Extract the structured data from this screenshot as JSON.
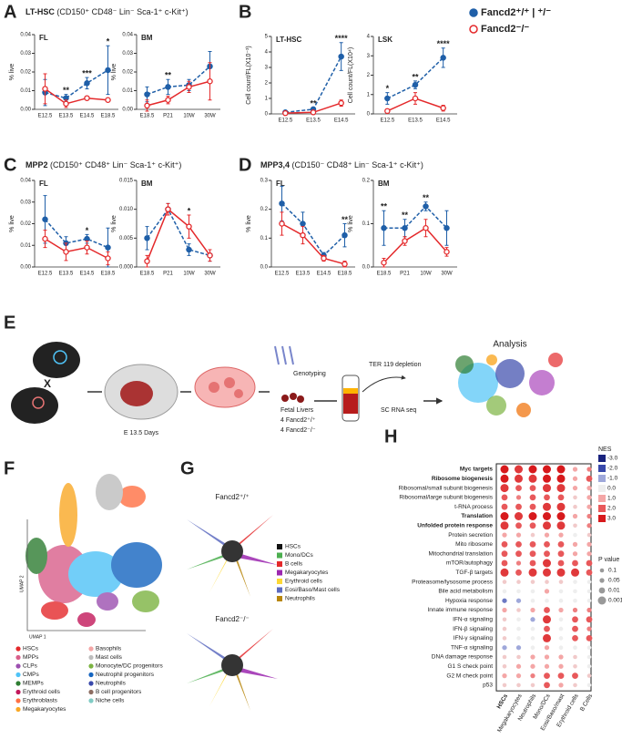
{
  "panel_letters": [
    "A",
    "B",
    "C",
    "D",
    "E",
    "F",
    "G",
    "H"
  ],
  "headers": {
    "A": [
      "LT-HSC",
      " (CD150⁺ CD48⁻ Lin⁻ Sca-1⁺ c-Kit⁺)"
    ],
    "C": [
      "MPP2",
      " (CD150⁺ CD48⁺ Lin⁻ Sca-1⁺ c-Kit⁺)"
    ],
    "D": [
      "MPP3,4",
      " (CD150⁻ CD48⁺ Lin⁻ Sca-1⁺ c-Kit⁺)"
    ]
  },
  "legend": [
    {
      "name": "Fancd2⁺/⁺ | ⁺/⁻",
      "color": "#1f5fa8"
    },
    {
      "name": "Fancd2⁻/⁻",
      "color": "#e4292b"
    }
  ],
  "chart_data": [
    {
      "type": "line",
      "title": "FL",
      "ylabel": "% live",
      "categories": [
        "E12.5",
        "E13.5",
        "E14.5",
        "E18.5"
      ],
      "ylim": [
        0,
        0.04
      ],
      "yticks": [
        {
          "value": 0,
          "label": "0.00"
        },
        0.01,
        0.02,
        0.03,
        0.04
      ],
      "series": [
        {
          "color": "#1f5fa8",
          "values": [
            0.009,
            0.006,
            0.014,
            0.021
          ],
          "errors": [
            0.007,
            0.002,
            0.003,
            0.013
          ]
        },
        {
          "color": "#e4292b",
          "values": [
            0.011,
            0.003,
            0.006,
            0.005
          ],
          "errors": [
            0.008,
            0.002,
            0.001,
            0.001
          ]
        }
      ],
      "annotations": [
        null,
        "**",
        "***",
        "*"
      ]
    },
    {
      "type": "line",
      "title": "BM",
      "ylabel": "% live",
      "categories": [
        "E18.5",
        "P21",
        "10W",
        "30W"
      ],
      "ylim": [
        0,
        0.04
      ],
      "yticks": [
        {
          "value": 0,
          "label": "0.00"
        },
        0.01,
        0.02,
        0.03,
        0.04
      ],
      "series": [
        {
          "color": "#1f5fa8",
          "values": [
            0.008,
            0.012,
            0.013,
            0.023
          ],
          "errors": [
            0.004,
            0.004,
            0.003,
            0.008
          ]
        },
        {
          "color": "#e4292b",
          "values": [
            0.002,
            0.005,
            0.012,
            0.015
          ],
          "errors": [
            0.003,
            0.002,
            0.003,
            0.01
          ]
        }
      ],
      "annotations": [
        null,
        "**",
        null,
        null
      ]
    },
    {
      "type": "line",
      "title": "LT-HSC",
      "ylabel": "Cell count/FL(X10⁻³)",
      "categories": [
        "E12.5",
        "E13.5",
        "E14.5"
      ],
      "ylim": [
        0,
        5
      ],
      "yticks": [
        0,
        1,
        2,
        3,
        4,
        5
      ],
      "series": [
        {
          "color": "#1f5fa8",
          "values": [
            0.1,
            0.3,
            3.7
          ],
          "errors": [
            0.05,
            0.1,
            0.9
          ]
        },
        {
          "color": "#e4292b",
          "values": [
            0.05,
            0.1,
            0.7
          ],
          "errors": [
            0.03,
            0.05,
            0.2
          ]
        }
      ],
      "annotations": [
        null,
        "**",
        "****"
      ]
    },
    {
      "type": "line",
      "title": "LSK",
      "ylabel": "Cell count/FL(X10⁴)",
      "categories": [
        "E12.5",
        "E13.5",
        "E14.5"
      ],
      "ylim": [
        0,
        4
      ],
      "yticks": [
        0,
        1,
        2,
        3,
        4
      ],
      "series": [
        {
          "color": "#1f5fa8",
          "values": [
            0.8,
            1.5,
            2.9
          ],
          "errors": [
            0.3,
            0.2,
            0.5
          ]
        },
        {
          "color": "#e4292b",
          "values": [
            0.15,
            0.8,
            0.3
          ],
          "errors": [
            0.1,
            0.3,
            0.15
          ]
        }
      ],
      "annotations": [
        "*",
        "**",
        "****"
      ]
    },
    {
      "type": "line",
      "title": "FL",
      "ylabel": "% live",
      "categories": [
        "E12.5",
        "E13.5",
        "E14.5",
        "E18.5"
      ],
      "ylim": [
        0,
        0.04
      ],
      "yticks": [
        {
          "value": 0,
          "label": "0.00"
        },
        0.01,
        0.02,
        0.03,
        0.04
      ],
      "series": [
        {
          "color": "#1f5fa8",
          "values": [
            0.022,
            0.011,
            0.013,
            0.009
          ],
          "errors": [
            0.011,
            0.003,
            0.002,
            0.009
          ]
        },
        {
          "color": "#e4292b",
          "values": [
            0.013,
            0.007,
            0.009,
            0.004
          ],
          "errors": [
            0.004,
            0.004,
            0.003,
            0.003
          ]
        }
      ],
      "annotations": [
        null,
        null,
        "*",
        null
      ]
    },
    {
      "type": "line",
      "title": "BM",
      "ylabel": "% live",
      "categories": [
        "E18.5",
        "P21",
        "10W",
        "30W"
      ],
      "ylim": [
        0,
        0.015
      ],
      "yticks": [
        {
          "value": 0,
          "label": "0.000"
        },
        0.005,
        {
          "value": 0.01,
          "label": "0.010"
        },
        0.015
      ],
      "series": [
        {
          "color": "#1f5fa8",
          "values": [
            0.005,
            0.01,
            0.003,
            0.002
          ],
          "errors": [
            0.002,
            0.001,
            0.001,
            0.001
          ]
        },
        {
          "color": "#e4292b",
          "values": [
            0.001,
            0.01,
            0.007,
            0.002
          ],
          "errors": [
            0.001,
            0.001,
            0.002,
            0.001
          ]
        }
      ],
      "annotations": [
        null,
        null,
        "*",
        null
      ]
    },
    {
      "type": "line",
      "title": "FL",
      "ylabel": "% live",
      "categories": [
        "E12.5",
        "E13.5",
        "E14.5",
        "E18.5"
      ],
      "ylim": [
        0,
        0.3
      ],
      "yticks": [
        {
          "value": 0,
          "label": "0.0"
        },
        0.1,
        0.2,
        0.3
      ],
      "series": [
        {
          "color": "#1f5fa8",
          "values": [
            0.22,
            0.15,
            0.04,
            0.11
          ],
          "errors": [
            0.06,
            0.04,
            0.01,
            0.04
          ]
        },
        {
          "color": "#e4292b",
          "values": [
            0.15,
            0.11,
            0.03,
            0.01
          ],
          "errors": [
            0.04,
            0.03,
            0.01,
            0.01
          ]
        }
      ],
      "annotations": [
        null,
        null,
        null,
        "**"
      ]
    },
    {
      "type": "line",
      "title": "BM",
      "ylabel": "% live",
      "categories": [
        "E18.5",
        "P21",
        "10W",
        "30W"
      ],
      "ylim": [
        0,
        0.2
      ],
      "yticks": [
        {
          "value": 0,
          "label": "0.0"
        },
        0.1,
        0.2
      ],
      "series": [
        {
          "color": "#1f5fa8",
          "values": [
            0.09,
            0.09,
            0.14,
            0.09
          ],
          "errors": [
            0.04,
            0.02,
            0.01,
            0.04
          ]
        },
        {
          "color": "#e4292b",
          "values": [
            0.01,
            0.06,
            0.09,
            0.035
          ],
          "errors": [
            0.01,
            0.01,
            0.02,
            0.01
          ]
        }
      ],
      "annotations": [
        "**",
        "**",
        "**",
        null
      ]
    },
    {
      "type": "dotplot",
      "rows": [
        {
          "label": "Myc targets",
          "color": "#e4292b"
        },
        {
          "label": "Ribosome biogenesis",
          "color": "#e4292b"
        },
        {
          "label": "Ribosomal/small subunit biogenesis",
          "color": "#222222"
        },
        {
          "label": "Ribosomal/large subunit biogenesis",
          "color": "#222222"
        },
        {
          "label": "t-RNA process",
          "color": "#222222"
        },
        {
          "label": "Translation",
          "color": "#e4292b"
        },
        {
          "label": "Unfolded protein response",
          "color": "#e4292b"
        },
        {
          "label": "Protein secretion",
          "color": "#222222"
        },
        {
          "label": "Mito ribosome",
          "color": "#222222"
        },
        {
          "label": "Mitochondrial translation",
          "color": "#222222"
        },
        {
          "label": "mTOR/autophagy",
          "color": "#222222"
        },
        {
          "label": "TGF-β targets",
          "color": "#222222"
        },
        {
          "label": "Proteasome/lysosome process",
          "color": "#222222"
        },
        {
          "label": "Bile acid metabolism",
          "color": "#222222"
        },
        {
          "label": "Hypoxia response",
          "color": "#222222"
        },
        {
          "label": "Innate immune response",
          "color": "#222222"
        },
        {
          "label": "IFN-α signaling",
          "color": "#222222"
        },
        {
          "label": "IFN-β signaling",
          "color": "#222222"
        },
        {
          "label": "IFN-γ signaling",
          "color": "#222222"
        },
        {
          "label": "TNF-α signaling",
          "color": "#222222"
        },
        {
          "label": "DNA damage response",
          "color": "#222222"
        },
        {
          "label": "G1 S check point",
          "color": "#222222"
        },
        {
          "label": "G2 M check point",
          "color": "#222222"
        },
        {
          "label": "p53",
          "color": "#222222"
        }
      ],
      "columns": [
        "HSCs",
        "Megakaryocytes",
        "Neutrophils",
        "Mono/DCs",
        "Eosi/Baso/mast",
        "Erythroid cells",
        "B Cells"
      ],
      "nes": [
        [
          3,
          2.5,
          3,
          3,
          3,
          1,
          1.5
        ],
        [
          3,
          2.5,
          2.5,
          3,
          3,
          1,
          2
        ],
        [
          2.5,
          2,
          2,
          2.5,
          2.5,
          1,
          1
        ],
        [
          2,
          1.5,
          2,
          2,
          2,
          0.5,
          1
        ],
        [
          2,
          2,
          2,
          2.5,
          2.5,
          0.5,
          1
        ],
        [
          3,
          2.5,
          3,
          3,
          3,
          1,
          1.5
        ],
        [
          2.5,
          2,
          2,
          2.5,
          2.5,
          0.5,
          1.5
        ],
        [
          1,
          1,
          0.5,
          1,
          1,
          0,
          0.5
        ],
        [
          2,
          2,
          2,
          2,
          2,
          1,
          1
        ],
        [
          2,
          2,
          2,
          2,
          2,
          1,
          1
        ],
        [
          2,
          1.5,
          2,
          2.5,
          2,
          2,
          2
        ],
        [
          2.5,
          2,
          2.5,
          2.5,
          2.5,
          2.5,
          2
        ],
        [
          0.5,
          0.5,
          0.5,
          0.5,
          0.5,
          0,
          0
        ],
        [
          0,
          0,
          0,
          1,
          0,
          0,
          0
        ],
        [
          -1.5,
          -1,
          0,
          0,
          0,
          0,
          0
        ],
        [
          1,
          0.5,
          1,
          2,
          1,
          1.5,
          1.5
        ],
        [
          0.5,
          0,
          -1,
          2.5,
          0,
          2,
          2
        ],
        [
          0.5,
          0,
          0,
          2,
          0,
          2,
          1.5
        ],
        [
          0.5,
          0,
          0,
          2.5,
          0,
          2,
          2
        ],
        [
          -1,
          -1,
          0,
          1,
          0,
          0,
          0
        ],
        [
          0.5,
          0.5,
          1,
          1,
          1,
          0.5,
          0
        ],
        [
          0.5,
          1,
          1,
          1,
          1,
          0.5,
          0
        ],
        [
          1,
          1,
          1.5,
          2,
          2,
          2,
          0.5
        ],
        [
          0.5,
          0.5,
          0.5,
          2,
          1,
          0.5,
          0
        ]
      ],
      "p": [
        [
          0.001,
          0.001,
          0.001,
          0.001,
          0.001,
          0.05,
          0.05
        ],
        [
          0.001,
          0.001,
          0.001,
          0.001,
          0.001,
          0.05,
          0.01
        ],
        [
          0.001,
          0.01,
          0.01,
          0.001,
          0.001,
          0.05,
          0.05
        ],
        [
          0.01,
          0.05,
          0.01,
          0.01,
          0.01,
          0.1,
          0.05
        ],
        [
          0.01,
          0.01,
          0.01,
          0.001,
          0.001,
          0.1,
          0.05
        ],
        [
          0.001,
          0.001,
          0.001,
          0.001,
          0.001,
          0.05,
          0.05
        ],
        [
          0.001,
          0.01,
          0.01,
          0.001,
          0.001,
          0.1,
          0.05
        ],
        [
          0.05,
          0.05,
          0.1,
          0.05,
          0.05,
          0.1,
          0.1
        ],
        [
          0.01,
          0.01,
          0.01,
          0.01,
          0.01,
          0.05,
          0.05
        ],
        [
          0.01,
          0.01,
          0.01,
          0.01,
          0.01,
          0.05,
          0.05
        ],
        [
          0.01,
          0.05,
          0.01,
          0.001,
          0.01,
          0.01,
          0.01
        ],
        [
          0.001,
          0.01,
          0.001,
          0.001,
          0.001,
          0.001,
          0.01
        ],
        [
          0.1,
          0.1,
          0.1,
          0.1,
          0.1,
          0.1,
          0.1
        ],
        [
          0.1,
          0.1,
          0.1,
          0.05,
          0.1,
          0.1,
          0.1
        ],
        [
          0.05,
          0.05,
          0.1,
          0.1,
          0.1,
          0.1,
          0.1
        ],
        [
          0.05,
          0.1,
          0.05,
          0.01,
          0.05,
          0.05,
          0.05
        ],
        [
          0.1,
          0.1,
          0.05,
          0.001,
          0.1,
          0.01,
          0.01
        ],
        [
          0.1,
          0.1,
          0.1,
          0.01,
          0.1,
          0.01,
          0.05
        ],
        [
          0.1,
          0.1,
          0.1,
          0.001,
          0.1,
          0.01,
          0.01
        ],
        [
          0.05,
          0.05,
          0.1,
          0.05,
          0.1,
          0.1,
          0.1
        ],
        [
          0.1,
          0.1,
          0.05,
          0.05,
          0.05,
          0.1,
          0.1
        ],
        [
          0.1,
          0.05,
          0.05,
          0.05,
          0.05,
          0.1,
          0.1
        ],
        [
          0.05,
          0.05,
          0.05,
          0.01,
          0.01,
          0.01,
          0.1
        ],
        [
          0.1,
          0.1,
          0.1,
          0.01,
          0.05,
          0.1,
          0.1
        ]
      ],
      "nes_title": "NES",
      "nes_legend": [
        {
          "value": -3,
          "label": "-3.0",
          "color": "#1a237e"
        },
        {
          "value": -2,
          "label": "-2.0",
          "color": "#3949ab"
        },
        {
          "value": -1,
          "label": "-1.0",
          "color": "#9fa8da"
        },
        {
          "value": 0,
          "label": "0.0",
          "color": "#eeeeee"
        },
        {
          "value": 1,
          "label": "1.0",
          "color": "#f4a6a6"
        },
        {
          "value": 2,
          "label": "2.0",
          "color": "#e8585a"
        },
        {
          "value": 3,
          "label": "3.0",
          "color": "#d7191c"
        }
      ],
      "p_title": "P value",
      "p_legend": [
        0.1,
        0.05,
        0.01,
        0.001
      ]
    }
  ],
  "diagram": {
    "cross": "X",
    "days": "E 13.5 Days",
    "genotyping": "Genotyping",
    "fetal_livers": "Fetal Livers",
    "wt": "4 Fancd2⁺/⁺",
    "ko": "4 Fancd2⁻/⁻",
    "depletion": "TER 119 depletion",
    "seq": "SC RNA seq",
    "analysis": "Analysis"
  },
  "umap": {
    "x_label": "UMAP 1",
    "y_label": "UMAP 2",
    "legend": [
      {
        "name": "HSCs",
        "color": "#e4292b"
      },
      {
        "name": "MPPs",
        "color": "#d95f8a"
      },
      {
        "name": "CLPs",
        "color": "#9c4fb0"
      },
      {
        "name": "CMPs",
        "color": "#4fc3f7"
      },
      {
        "name": "MEMPs",
        "color": "#2e7d32"
      },
      {
        "name": "Erythroid cells",
        "color": "#c2185b"
      },
      {
        "name": "Erythroblasts",
        "color": "#ff7043"
      },
      {
        "name": "Megakaryocytes",
        "color": "#f9a825"
      },
      {
        "name": "Basophils",
        "color": "#f4a6a6"
      },
      {
        "name": "Mast cells",
        "color": "#bdbdbd"
      },
      {
        "name": "Monocyte/DC progenitors",
        "color": "#7cb342"
      },
      {
        "name": "Neutrophil progenitors",
        "color": "#1565c0"
      },
      {
        "name": "Neutrophils",
        "color": "#3949ab"
      },
      {
        "name": "B cell progenitors",
        "color": "#8d6e63"
      },
      {
        "name": "Niche cells",
        "color": "#80cbc4"
      }
    ]
  },
  "g": {
    "wt_title": "Fancd2⁺/⁺",
    "ko_title": "Fancd2⁻/⁻",
    "legend": [
      {
        "name": "HSCs",
        "color": "#111111"
      },
      {
        "name": "Mono/DCs",
        "color": "#4caf50"
      },
      {
        "name": "B cells",
        "color": "#e4292b"
      },
      {
        "name": "Megakaryocytes",
        "color": "#9c27b0"
      },
      {
        "name": "Erythroid cells",
        "color": "#fdd835"
      },
      {
        "name": "Eosi/Baso/Mast cells",
        "color": "#5c6bc0"
      },
      {
        "name": "Neutrophils",
        "color": "#b8860b"
      }
    ]
  }
}
